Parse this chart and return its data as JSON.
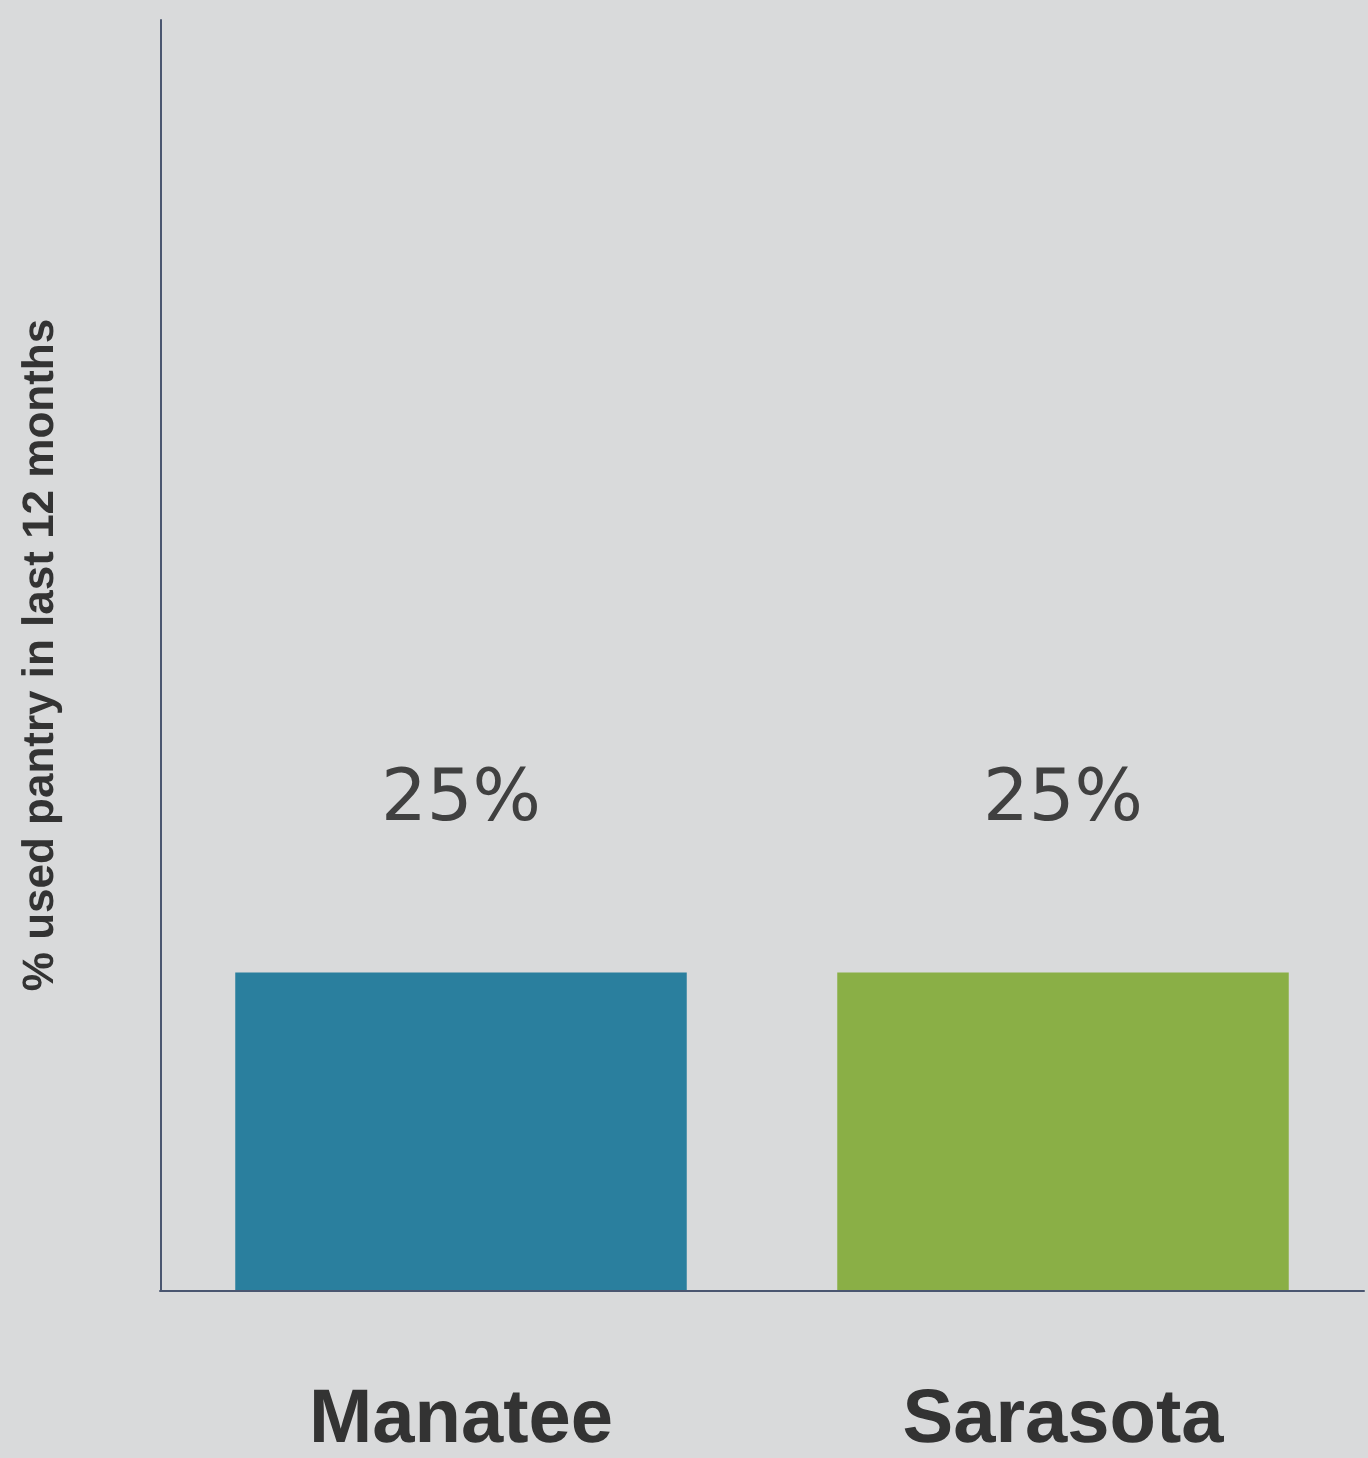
{
  "chart_data": {
    "type": "bar",
    "ylabel": "% used pantry in last 12 months",
    "categories": [
      "Manatee",
      "Sarasota"
    ],
    "values": [
      25,
      25
    ],
    "colors": [
      "#2a7f9e",
      "#8aaf46"
    ],
    "ylim": [
      0,
      100
    ],
    "data_labels": true,
    "value_labels": [
      "25%",
      "25%"
    ],
    "tick_labels": "x"
  }
}
